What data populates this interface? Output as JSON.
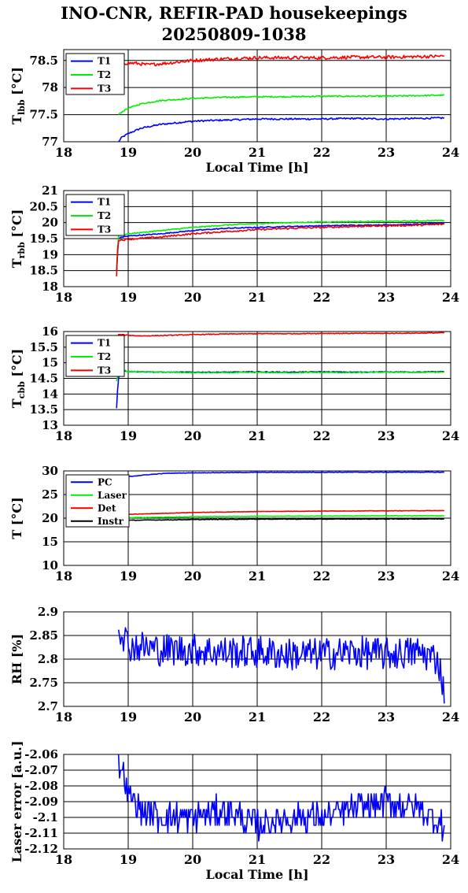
{
  "title": {
    "line1": "INO-CNR, REFIR-PAD housekeepings",
    "line2": "20250809-1038"
  },
  "chart_data": [
    {
      "type": "line",
      "ylabel": "T_lbb [°C]",
      "ylabel_parts": {
        "main": "T",
        "sub": "lbb",
        "unit": " [°C]"
      },
      "xlabel": "Local Time [h]",
      "xlim": [
        18,
        24
      ],
      "ylim": [
        77,
        78.7
      ],
      "xticks": [
        "18",
        "19",
        "20",
        "21",
        "22",
        "23",
        "24"
      ],
      "yticks": [
        "77",
        "77.5",
        "78",
        "78.5"
      ],
      "ytick_values": [
        77,
        77.5,
        78,
        78.5
      ],
      "grid": true,
      "legend_position": "top-left",
      "series": [
        {
          "name": "T1",
          "color": "#0000ff",
          "x": [
            18.85,
            18.9,
            19.0,
            19.2,
            19.5,
            20.0,
            20.5,
            21.0,
            21.5,
            22.0,
            22.5,
            23.0,
            23.5,
            23.9
          ],
          "y": [
            77.0,
            77.08,
            77.15,
            77.25,
            77.32,
            77.38,
            77.4,
            77.42,
            77.42,
            77.42,
            77.43,
            77.42,
            77.43,
            77.44
          ],
          "noise": 0.015
        },
        {
          "name": "T2",
          "color": "#00ee00",
          "x": [
            18.85,
            18.9,
            19.0,
            19.2,
            19.5,
            20.0,
            20.5,
            21.0,
            21.5,
            22.0,
            22.5,
            23.0,
            23.5,
            23.9
          ],
          "y": [
            77.5,
            77.55,
            77.62,
            77.7,
            77.76,
            77.8,
            77.82,
            77.83,
            77.83,
            77.84,
            77.84,
            77.84,
            77.85,
            77.86
          ],
          "noise": 0.012
        },
        {
          "name": "T3",
          "color": "#ff0000",
          "x": [
            18.85,
            18.88,
            18.95,
            19.1,
            19.3,
            19.6,
            20.0,
            20.5,
            21.0,
            21.5,
            22.0,
            22.5,
            23.0,
            23.5,
            23.9
          ],
          "y": [
            78.2,
            78.5,
            78.45,
            78.45,
            78.42,
            78.45,
            78.5,
            78.53,
            78.55,
            78.55,
            78.55,
            78.56,
            78.56,
            78.57,
            78.58
          ],
          "noise": 0.03
        }
      ]
    },
    {
      "type": "line",
      "ylabel": "T_rbb [°C]",
      "ylabel_parts": {
        "main": "T",
        "sub": "rbb",
        "unit": " [°C]"
      },
      "xlabel": "",
      "xlim": [
        18,
        24
      ],
      "ylim": [
        18,
        21
      ],
      "xticks": [
        "18",
        "19",
        "20",
        "21",
        "22",
        "23",
        "24"
      ],
      "yticks": [
        "18",
        "18.5",
        "19",
        "19.5",
        "20",
        "20.5",
        "21"
      ],
      "ytick_values": [
        18,
        18.5,
        19,
        19.5,
        20,
        20.5,
        21
      ],
      "grid": true,
      "legend_position": "top-left",
      "series": [
        {
          "name": "T1",
          "color": "#0000ff",
          "x": [
            18.82,
            18.85,
            18.9,
            19.0,
            19.5,
            20.0,
            20.5,
            21.0,
            21.5,
            22.0,
            22.5,
            23.0,
            23.5,
            23.9
          ],
          "y": [
            18.5,
            19.5,
            19.55,
            19.58,
            19.65,
            19.75,
            19.82,
            19.85,
            19.88,
            19.9,
            19.92,
            19.93,
            19.95,
            19.98
          ],
          "noise": 0.015
        },
        {
          "name": "T2",
          "color": "#00ee00",
          "x": [
            18.82,
            18.85,
            18.9,
            19.0,
            19.5,
            20.0,
            20.5,
            21.0,
            21.5,
            22.0,
            22.5,
            23.0,
            23.5,
            23.9
          ],
          "y": [
            18.6,
            19.6,
            19.62,
            19.65,
            19.75,
            19.85,
            19.92,
            19.97,
            20.0,
            20.02,
            20.03,
            20.04,
            20.05,
            20.07
          ],
          "noise": 0.015
        },
        {
          "name": "T3",
          "color": "#ee0000",
          "x": [
            18.82,
            18.84,
            18.88,
            19.0,
            19.5,
            20.0,
            20.5,
            21.0,
            21.5,
            22.0,
            22.5,
            23.0,
            23.5,
            23.9
          ],
          "y": [
            18.3,
            19.45,
            19.45,
            19.48,
            19.55,
            19.65,
            19.72,
            19.78,
            19.82,
            19.85,
            19.88,
            19.9,
            19.92,
            19.95
          ],
          "noise": 0.025
        }
      ]
    },
    {
      "type": "line",
      "ylabel": "T_cbb [°C]",
      "ylabel_parts": {
        "main": "T",
        "sub": "cbb",
        "unit": " [°C]"
      },
      "xlabel": "",
      "xlim": [
        18,
        24
      ],
      "ylim": [
        13,
        16
      ],
      "xticks": [
        "18",
        "19",
        "20",
        "21",
        "22",
        "23",
        "24"
      ],
      "yticks": [
        "13",
        "13.5",
        "14",
        "14.5",
        "15",
        "15.5",
        "16"
      ],
      "ytick_values": [
        13,
        13.5,
        14,
        14.5,
        15,
        15.5,
        16
      ],
      "grid": true,
      "legend_position": "top-left",
      "series": [
        {
          "name": "T1",
          "color": "#0000ff",
          "x": [
            18.82,
            18.84,
            18.86,
            18.9,
            19.0,
            19.5,
            20.0,
            20.5,
            21.0,
            21.5,
            22.0,
            22.5,
            23.0,
            23.5,
            23.9
          ],
          "y": [
            13.55,
            14.3,
            14.7,
            14.75,
            14.72,
            14.7,
            14.7,
            14.7,
            14.71,
            14.7,
            14.71,
            14.7,
            14.71,
            14.7,
            14.72
          ],
          "noise": 0.012
        },
        {
          "name": "T2",
          "color": "#00ee00",
          "x": [
            18.82,
            18.84,
            18.86,
            18.9,
            19.0,
            19.5,
            20.0,
            20.5,
            21.0,
            21.5,
            22.0,
            22.5,
            23.0,
            23.5,
            23.9
          ],
          "y": [
            14.4,
            14.6,
            14.75,
            14.78,
            14.72,
            14.7,
            14.68,
            14.68,
            14.69,
            14.68,
            14.69,
            14.68,
            14.7,
            14.69,
            14.7
          ],
          "noise": 0.015
        },
        {
          "name": "T3",
          "color": "#ee0000",
          "x": [
            18.84,
            18.9,
            19.0,
            19.2,
            19.5,
            20.0,
            20.5,
            21.0,
            21.5,
            22.0,
            22.5,
            23.0,
            23.5,
            23.9
          ],
          "y": [
            15.9,
            15.9,
            15.88,
            15.86,
            15.87,
            15.9,
            15.92,
            15.93,
            15.93,
            15.94,
            15.94,
            15.94,
            15.95,
            15.96
          ],
          "noise": 0.012
        }
      ]
    },
    {
      "type": "line",
      "ylabel": "T [°C]",
      "ylabel_parts": {
        "main": "T [°C]",
        "sub": "",
        "unit": ""
      },
      "xlabel": "",
      "xlim": [
        18,
        24
      ],
      "ylim": [
        10,
        30
      ],
      "xticks": [
        "18",
        "19",
        "20",
        "21",
        "22",
        "23",
        "24"
      ],
      "yticks": [
        "10",
        "15",
        "20",
        "25",
        "30"
      ],
      "ytick_values": [
        10,
        15,
        20,
        25,
        30
      ],
      "grid": true,
      "legend_position": "top-left",
      "series": [
        {
          "name": "PC",
          "color": "#0000ff",
          "x": [
            18.85,
            19.0,
            19.3,
            19.6,
            20.0,
            20.5,
            21.0,
            21.5,
            22.0,
            22.5,
            23.0,
            23.5,
            23.9
          ],
          "y": [
            28.0,
            28.8,
            29.2,
            29.5,
            29.6,
            29.65,
            29.7,
            29.7,
            29.72,
            29.72,
            29.73,
            29.73,
            29.72
          ],
          "noise": 0.05
        },
        {
          "name": "Laser",
          "color": "#00ee00",
          "x": [
            18.85,
            19.0,
            20.0,
            21.0,
            22.0,
            23.0,
            23.9
          ],
          "y": [
            20.0,
            20.1,
            20.3,
            20.4,
            20.45,
            20.5,
            20.5
          ],
          "noise": 0.05
        },
        {
          "name": "Det",
          "color": "#ee0000",
          "x": [
            18.85,
            19.0,
            20.0,
            21.0,
            22.0,
            23.0,
            23.9
          ],
          "y": [
            20.6,
            20.8,
            21.2,
            21.4,
            21.5,
            21.55,
            21.6
          ],
          "noise": 0.04
        },
        {
          "name": "Instr",
          "color": "#000000",
          "x": [
            18.85,
            19.0,
            20.0,
            21.0,
            22.0,
            23.0,
            23.9
          ],
          "y": [
            19.5,
            19.55,
            19.7,
            19.8,
            19.8,
            19.82,
            19.85
          ],
          "noise": 0.06
        }
      ]
    },
    {
      "type": "line",
      "ylabel": "RH [%]",
      "ylabel_parts": {
        "main": "RH [%]",
        "sub": "",
        "unit": ""
      },
      "xlabel": "",
      "xlim": [
        18,
        24
      ],
      "ylim": [
        2.7,
        2.9
      ],
      "xticks": [
        "18",
        "19",
        "20",
        "21",
        "22",
        "23",
        "24"
      ],
      "yticks": [
        "2.7",
        "2.75",
        "2.8",
        "2.85",
        "2.9"
      ],
      "ytick_values": [
        2.7,
        2.75,
        2.8,
        2.85,
        2.9
      ],
      "grid": true,
      "legend_position": "none",
      "series": [
        {
          "name": "",
          "color": "#0000ff",
          "x": [
            18.85,
            18.9,
            19.0,
            19.5,
            20.0,
            20.5,
            21.0,
            21.5,
            22.0,
            22.5,
            23.0,
            23.5,
            23.8,
            23.9
          ],
          "y": [
            2.875,
            2.86,
            2.83,
            2.82,
            2.82,
            2.815,
            2.815,
            2.81,
            2.81,
            2.815,
            2.81,
            2.815,
            2.8,
            2.735
          ],
          "noise": 0.035
        }
      ]
    },
    {
      "type": "line",
      "ylabel": "Laser error [a.u.]",
      "ylabel_parts": {
        "main": "Laser error [a.u.]",
        "sub": "",
        "unit": ""
      },
      "xlabel": "Local Time [h]",
      "xlim": [
        18,
        24
      ],
      "ylim": [
        -2.12,
        -2.06
      ],
      "xticks": [
        "18",
        "19",
        "20",
        "21",
        "22",
        "23",
        "24"
      ],
      "yticks": [
        "-2.12",
        "-2.11",
        "-2.1",
        "-2.09",
        "-2.08",
        "-2.07",
        "-2.06"
      ],
      "ytick_values": [
        -2.12,
        -2.11,
        -2.1,
        -2.09,
        -2.08,
        -2.07,
        -2.06
      ],
      "grid": true,
      "legend_position": "none",
      "series": [
        {
          "name": "",
          "color": "#0000ff",
          "x": [
            18.85,
            18.9,
            19.0,
            19.2,
            19.5,
            20.0,
            20.5,
            21.0,
            21.5,
            22.0,
            22.5,
            23.0,
            23.5,
            23.9
          ],
          "y": [
            -2.065,
            -2.07,
            -2.085,
            -2.095,
            -2.1,
            -2.1,
            -2.095,
            -2.105,
            -2.1,
            -2.1,
            -2.095,
            -2.09,
            -2.095,
            -2.105
          ],
          "noise": 0.009,
          "step": 0.005
        }
      ]
    }
  ]
}
